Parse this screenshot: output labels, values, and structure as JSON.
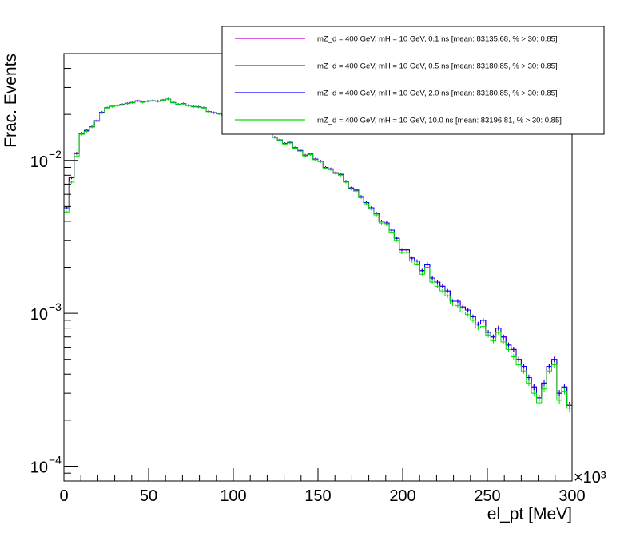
{
  "chart_data": {
    "type": "line",
    "title": "",
    "xlabel": "el_pt [MeV]",
    "ylabel": "Frac. Events",
    "x_multiplier": "×10³",
    "xlim": [
      0,
      300000
    ],
    "ylim": [
      8e-05,
      0.05
    ],
    "yscale": "log",
    "grid": false,
    "legend_position": "top-right",
    "x_tick_labels": [
      "0",
      "50",
      "100",
      "150",
      "200",
      "250",
      "300"
    ],
    "x_ticks": [
      0,
      50000,
      100000,
      150000,
      200000,
      250000,
      300000
    ],
    "y_tick_labels": [
      {
        "value": 0.0001,
        "base": "10",
        "exp": "−4"
      },
      {
        "value": 0.001,
        "base": "10",
        "exp": "−3"
      },
      {
        "value": 0.01,
        "base": "10",
        "exp": "−2"
      }
    ],
    "bin_width": 3000,
    "x": [
      1500,
      4500,
      7500,
      10500,
      13500,
      16500,
      19500,
      22500,
      25500,
      28500,
      31500,
      34500,
      37500,
      40500,
      43500,
      46500,
      49500,
      52500,
      55500,
      58500,
      61500,
      64500,
      67500,
      70500,
      73500,
      76500,
      79500,
      82500,
      85500,
      88500,
      91500,
      94500,
      97500,
      100500,
      103500,
      106500,
      109500,
      112500,
      115500,
      118500,
      121500,
      124500,
      127500,
      130500,
      133500,
      136500,
      139500,
      142500,
      145500,
      148500,
      151500,
      154500,
      157500,
      160500,
      163500,
      166500,
      169500,
      172500,
      175500,
      178500,
      181500,
      184500,
      187500,
      190500,
      193500,
      196500,
      199500,
      202500,
      205500,
      208500,
      211500,
      214500,
      217500,
      220500,
      223500,
      226500,
      229500,
      232500,
      235500,
      238500,
      241500,
      244500,
      247500,
      250500,
      253500,
      256500,
      259500,
      262500,
      265500,
      268500,
      271500,
      274500,
      277500,
      280500,
      283500,
      286500,
      289500,
      292500,
      295500,
      298500
    ],
    "series": [
      {
        "name": "mZ_d = 400 GeV, mH = 10 GeV, 0.1 ns [mean: 83135.68, % > 30: 0.85]",
        "color": "#cc00cc",
        "values": [
          0.0049,
          0.0077,
          0.0112,
          0.0151,
          0.0157,
          0.0166,
          0.0182,
          0.0206,
          0.0221,
          0.0226,
          0.0229,
          0.0232,
          0.0236,
          0.0239,
          0.0245,
          0.0241,
          0.0244,
          0.0246,
          0.0244,
          0.0248,
          0.0252,
          0.0239,
          0.0233,
          0.0235,
          0.0229,
          0.0225,
          0.0224,
          0.0221,
          0.0209,
          0.0205,
          0.0202,
          0.0198,
          0.0192,
          0.0189,
          0.0186,
          0.0181,
          0.0171,
          0.0169,
          0.0163,
          0.0158,
          0.0152,
          0.0142,
          0.0136,
          0.0129,
          0.0131,
          0.0121,
          0.0116,
          0.0108,
          0.011,
          0.0102,
          0.0099,
          0.009,
          0.0088,
          0.0083,
          0.0081,
          0.0073,
          0.0066,
          0.0064,
          0.0058,
          0.0053,
          0.0049,
          0.0045,
          0.004,
          0.0039,
          0.0035,
          0.0031,
          0.0026,
          0.0026,
          0.0023,
          0.0022,
          0.0019,
          0.0021,
          0.0017,
          0.0016,
          0.0015,
          0.0014,
          0.0012,
          0.0012,
          0.0011,
          0.00105,
          0.00095,
          0.00085,
          0.0009,
          0.00075,
          0.0007,
          0.0008,
          0.0007,
          0.00062,
          0.00058,
          0.0005,
          0.00045,
          0.00038,
          0.00033,
          0.00028,
          0.00035,
          0.00045,
          0.0005,
          0.0003,
          0.00033,
          0.00025
        ]
      },
      {
        "name": "mZ_d = 400 GeV, mH = 10 GeV, 0.5 ns [mean: 83180.85, % > 30: 0.85]",
        "color": "#ff0000",
        "values": [
          0.0049,
          0.0077,
          0.0111,
          0.015,
          0.0157,
          0.0166,
          0.0182,
          0.0206,
          0.0221,
          0.0226,
          0.0229,
          0.0232,
          0.0236,
          0.0239,
          0.0245,
          0.0241,
          0.0244,
          0.0246,
          0.0244,
          0.0248,
          0.0252,
          0.0239,
          0.0233,
          0.0235,
          0.0229,
          0.0225,
          0.0224,
          0.0221,
          0.0209,
          0.0205,
          0.0202,
          0.0198,
          0.0192,
          0.0189,
          0.0186,
          0.0181,
          0.0171,
          0.0169,
          0.0163,
          0.0158,
          0.0152,
          0.0142,
          0.0136,
          0.0129,
          0.0131,
          0.0121,
          0.0116,
          0.0108,
          0.011,
          0.0102,
          0.0099,
          0.009,
          0.0088,
          0.0083,
          0.0081,
          0.0073,
          0.0066,
          0.0064,
          0.0058,
          0.0053,
          0.0049,
          0.0045,
          0.004,
          0.0039,
          0.0035,
          0.0031,
          0.0026,
          0.0026,
          0.0023,
          0.0022,
          0.0019,
          0.0021,
          0.0017,
          0.0016,
          0.0015,
          0.0014,
          0.0012,
          0.0012,
          0.0011,
          0.00105,
          0.00095,
          0.00085,
          0.0009,
          0.00075,
          0.0007,
          0.0008,
          0.0007,
          0.00062,
          0.00058,
          0.0005,
          0.00045,
          0.00038,
          0.00033,
          0.00028,
          0.00035,
          0.00045,
          0.0005,
          0.0003,
          0.00033,
          0.00025
        ]
      },
      {
        "name": "mZ_d = 400 GeV, mH = 10 GeV, 2.0 ns [mean: 83180.85, % > 30: 0.85]",
        "color": "#0000ff",
        "values": [
          0.0049,
          0.0077,
          0.0111,
          0.015,
          0.0157,
          0.0166,
          0.0182,
          0.0206,
          0.0221,
          0.0226,
          0.0229,
          0.0232,
          0.0236,
          0.0239,
          0.0245,
          0.0241,
          0.0244,
          0.0246,
          0.0244,
          0.0248,
          0.0252,
          0.0239,
          0.0233,
          0.0235,
          0.0229,
          0.0225,
          0.0224,
          0.0221,
          0.0209,
          0.0205,
          0.0202,
          0.0198,
          0.0192,
          0.0189,
          0.0186,
          0.0181,
          0.0171,
          0.0169,
          0.0163,
          0.0158,
          0.0152,
          0.0142,
          0.0136,
          0.0129,
          0.0131,
          0.0121,
          0.0116,
          0.0108,
          0.011,
          0.0102,
          0.0099,
          0.009,
          0.0088,
          0.0083,
          0.0081,
          0.0073,
          0.0066,
          0.0064,
          0.0058,
          0.0053,
          0.0049,
          0.0045,
          0.004,
          0.0039,
          0.0035,
          0.0031,
          0.0026,
          0.0026,
          0.0023,
          0.0022,
          0.0019,
          0.0021,
          0.0017,
          0.0016,
          0.0015,
          0.0014,
          0.0012,
          0.0012,
          0.0011,
          0.00105,
          0.00095,
          0.00085,
          0.0009,
          0.00075,
          0.0007,
          0.0008,
          0.0007,
          0.00062,
          0.00058,
          0.0005,
          0.00045,
          0.00038,
          0.00033,
          0.00028,
          0.00035,
          0.00045,
          0.0005,
          0.0003,
          0.00033,
          0.00025
        ]
      },
      {
        "name": "mZ_d = 400 GeV, mH = 10 GeV, 10.0 ns [mean: 83196.81, % > 30: 0.85]",
        "color": "#00dd00",
        "values": [
          0.0046,
          0.0072,
          0.0106,
          0.0148,
          0.0155,
          0.0165,
          0.018,
          0.0204,
          0.022,
          0.0225,
          0.0228,
          0.0231,
          0.0235,
          0.0238,
          0.0244,
          0.024,
          0.0243,
          0.0245,
          0.0243,
          0.0247,
          0.0251,
          0.0238,
          0.0232,
          0.0234,
          0.0228,
          0.0224,
          0.0223,
          0.022,
          0.0208,
          0.0204,
          0.0201,
          0.0197,
          0.0191,
          0.0188,
          0.0185,
          0.018,
          0.017,
          0.0168,
          0.0162,
          0.0157,
          0.0151,
          0.0141,
          0.0135,
          0.0128,
          0.013,
          0.012,
          0.0115,
          0.0107,
          0.0109,
          0.0101,
          0.0098,
          0.0089,
          0.0087,
          0.0082,
          0.008,
          0.0072,
          0.0065,
          0.0063,
          0.0057,
          0.0052,
          0.0048,
          0.0044,
          0.0039,
          0.0038,
          0.0034,
          0.003,
          0.0025,
          0.0025,
          0.0022,
          0.0021,
          0.0018,
          0.002,
          0.0016,
          0.0015,
          0.0014,
          0.0013,
          0.00115,
          0.00112,
          0.00102,
          0.00098,
          0.0009,
          0.0008,
          0.00082,
          0.00072,
          0.00066,
          0.00075,
          0.00065,
          0.00058,
          0.00052,
          0.00046,
          0.00042,
          0.00035,
          0.0003,
          0.00026,
          0.00032,
          0.00042,
          0.00046,
          0.00027,
          0.00031,
          0.00024
        ]
      }
    ]
  }
}
